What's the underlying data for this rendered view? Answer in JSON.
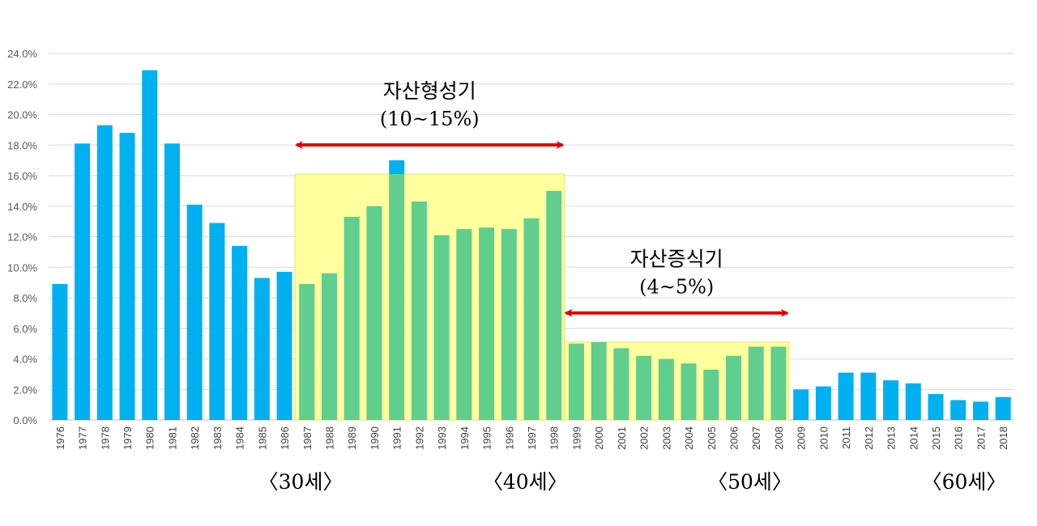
{
  "chart_data": {
    "type": "bar",
    "title": "",
    "xlabel": "",
    "ylabel": "",
    "ylim": [
      0,
      24
    ],
    "y_ticks": [
      "0.0%",
      "2.0%",
      "4.0%",
      "6.0%",
      "8.0%",
      "10.0%",
      "12.0%",
      "14.0%",
      "16.0%",
      "18.0%",
      "20.0%",
      "22.0%",
      "24.0%"
    ],
    "grid": true,
    "bar_color": "#00B0F0",
    "highlight_bar_color": "#5FCE8F",
    "highlight_fill": "#FFFF99",
    "arrow_color": "#E00000",
    "categories": [
      "1976",
      "1977",
      "1978",
      "1979",
      "1980",
      "1981",
      "1982",
      "1983",
      "1984",
      "1985",
      "1986",
      "1987",
      "1988",
      "1989",
      "1990",
      "1991",
      "1992",
      "1993",
      "1994",
      "1995",
      "1996",
      "1997",
      "1998",
      "1999",
      "2000",
      "2001",
      "2002",
      "2003",
      "2004",
      "2005",
      "2006",
      "2007",
      "2008",
      "2009",
      "2010",
      "2011",
      "2012",
      "2013",
      "2014",
      "2015",
      "2016",
      "2017",
      "2018"
    ],
    "values": [
      8.9,
      18.1,
      19.3,
      18.8,
      22.9,
      18.1,
      14.1,
      12.9,
      11.4,
      9.3,
      9.7,
      8.9,
      9.6,
      13.3,
      14.0,
      17.0,
      14.3,
      12.1,
      12.5,
      12.6,
      12.5,
      13.2,
      15.0,
      5.0,
      5.1,
      4.7,
      4.2,
      4.0,
      3.7,
      3.3,
      4.2,
      4.8,
      4.8,
      2.0,
      2.2,
      3.1,
      3.1,
      2.6,
      2.4,
      1.7,
      1.3,
      1.2,
      1.5
    ],
    "annotations": [
      {
        "name": "asset-formation",
        "title": "자산형성기",
        "range": "(10~15%)",
        "from": "1987",
        "to": "1998",
        "level": 16.1
      },
      {
        "name": "asset-growth",
        "title": "자산증식기",
        "range": "(4~5%)",
        "from": "1999",
        "to": "2008",
        "level": 5.1
      }
    ],
    "age_markers": [
      {
        "label": "〈30세〉",
        "at": "1986"
      },
      {
        "label": "〈40세〉",
        "at": "1996"
      },
      {
        "label": "〈50세〉",
        "at": "2006"
      },
      {
        "label": "〈60세〉",
        "at": "2016"
      }
    ]
  }
}
